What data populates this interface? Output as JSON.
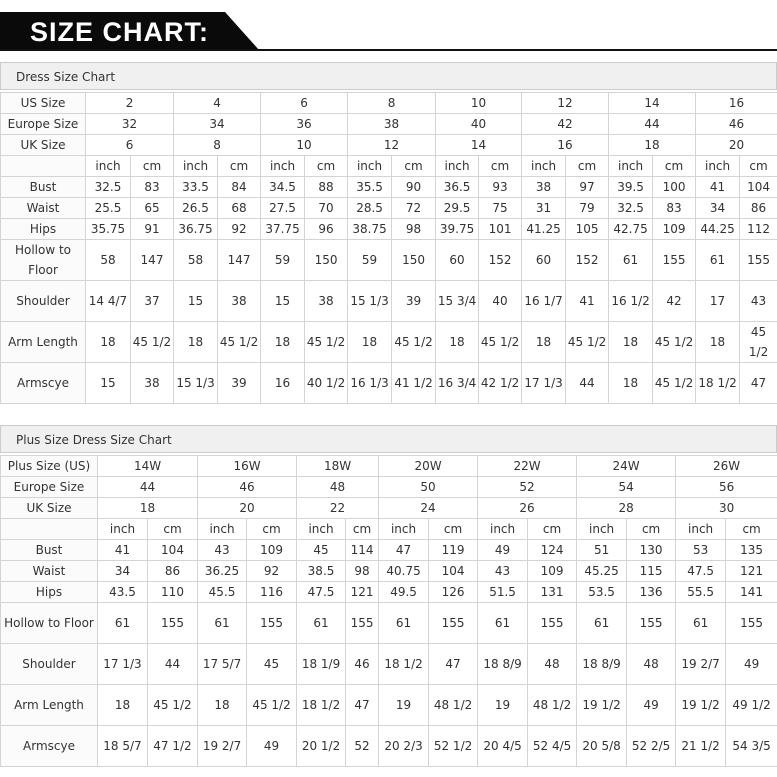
{
  "header": {
    "title": "SIZE CHART:"
  },
  "dress": {
    "title": "Dress Size Chart",
    "rows": {
      "us": {
        "label": "US Size",
        "values": [
          "2",
          "4",
          "6",
          "8",
          "10",
          "12",
          "14",
          "16"
        ]
      },
      "europe": {
        "label": "Europe Size",
        "values": [
          "32",
          "34",
          "36",
          "38",
          "40",
          "42",
          "44",
          "46"
        ]
      },
      "uk": {
        "label": "UK Size",
        "values": [
          "6",
          "8",
          "10",
          "12",
          "14",
          "16",
          "18",
          "20"
        ]
      }
    },
    "units": [
      "inch",
      "cm"
    ],
    "measures": [
      {
        "label": "Bust",
        "values": [
          "32.5",
          "83",
          "33.5",
          "84",
          "34.5",
          "88",
          "35.5",
          "90",
          "36.5",
          "93",
          "38",
          "97",
          "39.5",
          "100",
          "41",
          "104"
        ]
      },
      {
        "label": "Waist",
        "values": [
          "25.5",
          "65",
          "26.5",
          "68",
          "27.5",
          "70",
          "28.5",
          "72",
          "29.5",
          "75",
          "31",
          "79",
          "32.5",
          "83",
          "34",
          "86"
        ]
      },
      {
        "label": "Hips",
        "values": [
          "35.75",
          "91",
          "36.75",
          "92",
          "37.75",
          "96",
          "38.75",
          "98",
          "39.75",
          "101",
          "41.25",
          "105",
          "42.75",
          "109",
          "44.25",
          "112"
        ]
      },
      {
        "label": "Hollow to Floor",
        "tall": true,
        "values": [
          "58",
          "147",
          "58",
          "147",
          "59",
          "150",
          "59",
          "150",
          "60",
          "152",
          "60",
          "152",
          "61",
          "155",
          "61",
          "155"
        ]
      },
      {
        "label": "Shoulder",
        "tall": true,
        "values": [
          "14 4/7",
          "37",
          "15",
          "38",
          "15",
          "38",
          "15 1/3",
          "39",
          "15 3/4",
          "40",
          "16 1/7",
          "41",
          "16 1/2",
          "42",
          "17",
          "43"
        ]
      },
      {
        "label": "Arm Length",
        "tall": true,
        "values": [
          "18",
          "45 1/2",
          "18",
          "45 1/2",
          "18",
          "45 1/2",
          "18",
          "45 1/2",
          "18",
          "45 1/2",
          "18",
          "45 1/2",
          "18",
          "45 1/2",
          "18",
          "45 1/2"
        ]
      },
      {
        "label": "Armscye",
        "tall": true,
        "values": [
          "15",
          "38",
          "15 1/3",
          "39",
          "16",
          "40 1/2",
          "16 1/3",
          "41 1/2",
          "16 3/4",
          "42 1/2",
          "17 1/3",
          "44",
          "18",
          "45 1/2",
          "18 1/2",
          "47"
        ]
      }
    ]
  },
  "plus": {
    "title": "Plus Size Dress Size Chart",
    "rows": {
      "us": {
        "label": "Plus Size (US)",
        "values": [
          "14W",
          "16W",
          "18W",
          "20W",
          "22W",
          "24W",
          "26W"
        ]
      },
      "europe": {
        "label": "Europe Size",
        "values": [
          "44",
          "46",
          "48",
          "50",
          "52",
          "54",
          "56"
        ]
      },
      "uk": {
        "label": "UK Size",
        "values": [
          "18",
          "20",
          "22",
          "24",
          "26",
          "28",
          "30"
        ]
      }
    },
    "units": [
      "inch",
      "cm"
    ],
    "measures": [
      {
        "label": "Bust",
        "values": [
          "41",
          "104",
          "43",
          "109",
          "45",
          "114",
          "47",
          "119",
          "49",
          "124",
          "51",
          "130",
          "53",
          "135"
        ]
      },
      {
        "label": "Waist",
        "values": [
          "34",
          "86",
          "36.25",
          "92",
          "38.5",
          "98",
          "40.75",
          "104",
          "43",
          "109",
          "45.25",
          "115",
          "47.5",
          "121"
        ]
      },
      {
        "label": "Hips",
        "values": [
          "43.5",
          "110",
          "45.5",
          "116",
          "47.5",
          "121",
          "49.5",
          "126",
          "51.5",
          "131",
          "53.5",
          "136",
          "55.5",
          "141"
        ]
      },
      {
        "label": "Hollow to Floor",
        "tall": true,
        "values": [
          "61",
          "155",
          "61",
          "155",
          "61",
          "155",
          "61",
          "155",
          "61",
          "155",
          "61",
          "155",
          "61",
          "155"
        ]
      },
      {
        "label": "Shoulder",
        "tall": true,
        "values": [
          "17 1/3",
          "44",
          "17 5/7",
          "45",
          "18 1/9",
          "46",
          "18 1/2",
          "47",
          "18 8/9",
          "48",
          "18 8/9",
          "48",
          "19 2/7",
          "49"
        ]
      },
      {
        "label": "Arm Length",
        "tall": true,
        "values": [
          "18",
          "45 1/2",
          "18",
          "45 1/2",
          "18 1/2",
          "47",
          "19",
          "48 1/2",
          "19",
          "48 1/2",
          "19 1/2",
          "49",
          "19 1/2",
          "49 1/2"
        ]
      },
      {
        "label": "Armscye",
        "tall": true,
        "values": [
          "18 5/7",
          "47 1/2",
          "19 2/7",
          "49",
          "20 1/2",
          "52",
          "20 2/3",
          "52 1/2",
          "20 4/5",
          "52 4/5",
          "20 5/8",
          "52 2/5",
          "21 1/2",
          "54 3/5"
        ]
      }
    ]
  }
}
